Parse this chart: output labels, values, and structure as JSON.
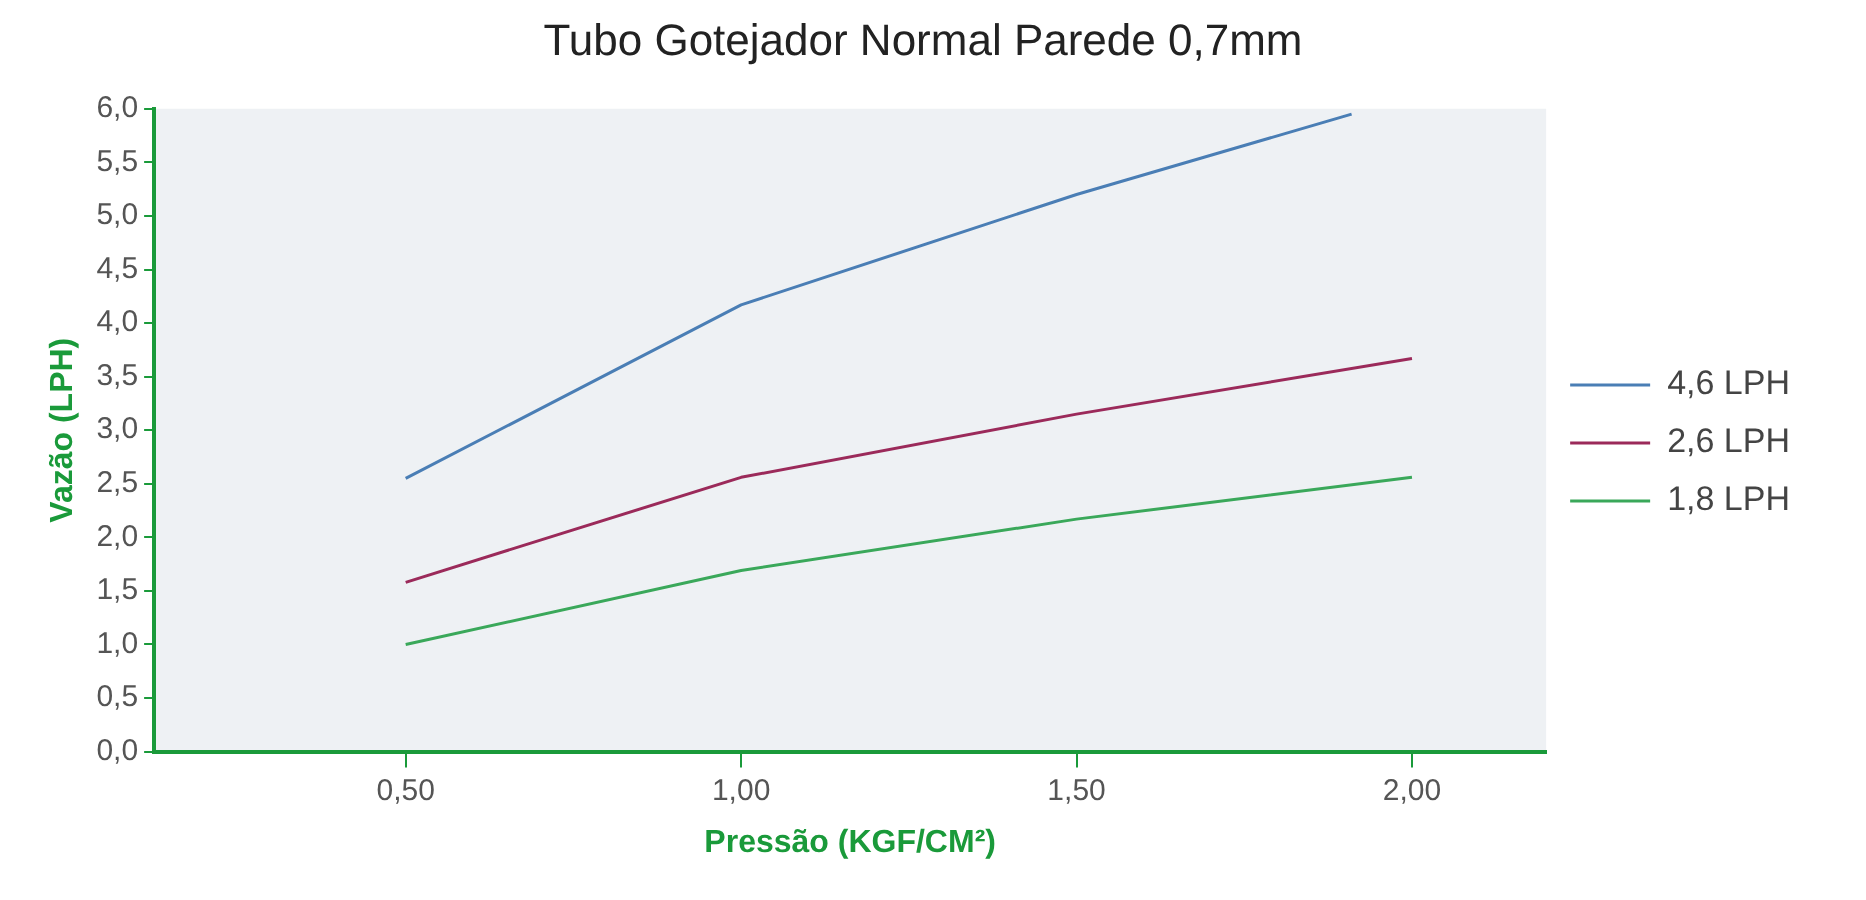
{
  "chart_data": {
    "type": "line",
    "title": "Tubo Gotejador Normal Parede 0,7mm",
    "xlabel": "Pressão (KGF/CM²)",
    "ylabel": "Vazão (LPH)",
    "xlim": [
      0.125,
      2.2
    ],
    "xticks": [
      {
        "value": 0.5,
        "label": "0,50"
      },
      {
        "value": 1,
        "label": "1,00"
      },
      {
        "value": 1.5,
        "label": "1,50"
      },
      {
        "value": 2,
        "label": "2,00"
      }
    ],
    "ylim": [
      0,
      6
    ],
    "yticks": [
      {
        "value": 0,
        "label": "0,0"
      },
      {
        "value": 0.5,
        "label": "0,5"
      },
      {
        "value": 1,
        "label": "1,0"
      },
      {
        "value": 1.5,
        "label": "1,5"
      },
      {
        "value": 2,
        "label": "2,0"
      },
      {
        "value": 2.5,
        "label": "2,5"
      },
      {
        "value": 3,
        "label": "3,0"
      },
      {
        "value": 3.5,
        "label": "3,5"
      },
      {
        "value": 4,
        "label": "4,0"
      },
      {
        "value": 4.5,
        "label": "4,5"
      },
      {
        "value": 5,
        "label": "5,0"
      },
      {
        "value": 5.5,
        "label": "5,5"
      },
      {
        "value": 6,
        "label": "6,0"
      }
    ],
    "grid": false,
    "legend": "right",
    "marker": "none",
    "line_style": "solid",
    "series": [
      {
        "name": "4,6 LPH",
        "color": "#4a7eb5",
        "x": [
          0.5,
          1,
          1.5,
          1.91
        ],
        "values": [
          2.55,
          4.17,
          5.2,
          5.95
        ]
      },
      {
        "name": "2,6 LPH",
        "color": "#9b2a5a",
        "x": [
          0.5,
          1,
          1.5,
          2
        ],
        "values": [
          1.58,
          2.56,
          3.15,
          3.67
        ]
      },
      {
        "name": "1,8 LPH",
        "color": "#3aa85a",
        "x": [
          0.5,
          1,
          1.5,
          2
        ],
        "values": [
          1.0,
          1.69,
          2.17,
          2.56
        ]
      }
    ]
  }
}
